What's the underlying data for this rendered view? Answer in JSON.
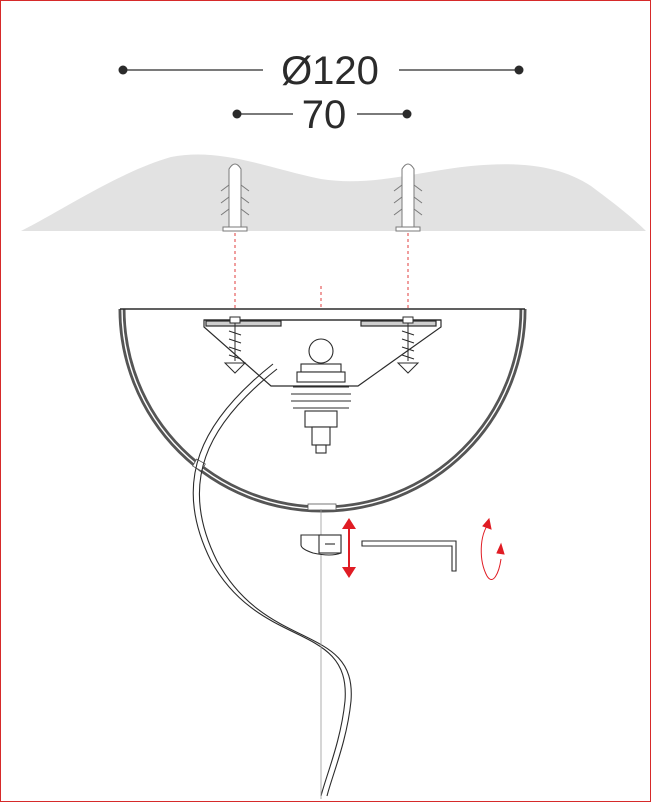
{
  "dimensions": {
    "outer": "Ø120",
    "inner": "70"
  },
  "colors": {
    "frame": "#d62a2a",
    "ceiling": "#e2e2e2",
    "guide_line": "#e03c3c",
    "arrow": "#e01c24",
    "ink": "#2b2b2b",
    "shade": "#555555"
  },
  "icons": {
    "move_arrow": "double-vertical-arrow-icon",
    "rotate_arrow": "rotate-arrow-icon",
    "hex_key": "allen-key-icon"
  }
}
